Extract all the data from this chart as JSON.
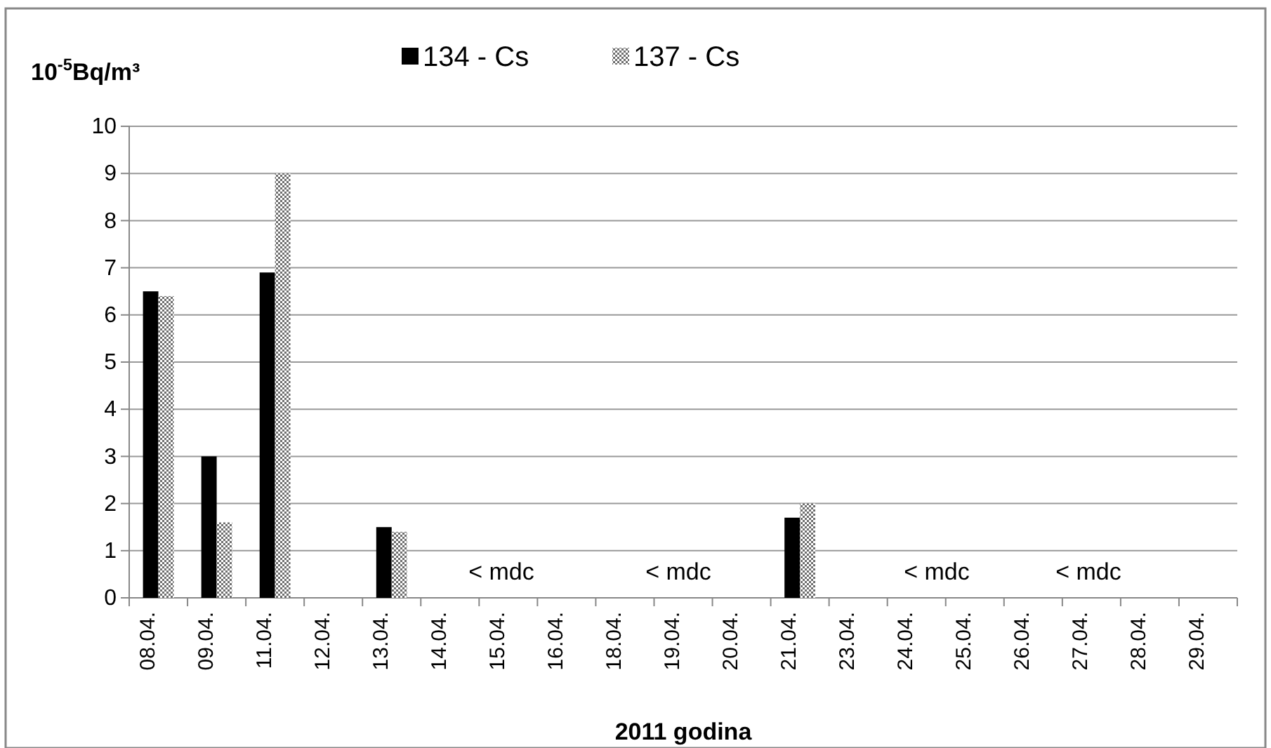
{
  "chart_data": {
    "type": "bar",
    "ylabel": "10$^{-5}$Bq/m³",
    "xlabel": "2011 godina",
    "categories": [
      "08.04.",
      "09.04.",
      "11.04.",
      "12.04.",
      "13.04.",
      "14.04.",
      "15.04.",
      "16.04.",
      "18.04.",
      "19.04.",
      "20.04.",
      "21.04.",
      "23.04.",
      "24.04.",
      "25.04.",
      "26.04.",
      "27.04.",
      "28.04.",
      "29.04."
    ],
    "series": [
      {
        "name": "134 - Cs",
        "color": "#000000",
        "values": [
          6.5,
          3.0,
          6.9,
          null,
          1.5,
          null,
          null,
          null,
          null,
          null,
          null,
          1.7,
          null,
          null,
          null,
          null,
          null,
          null,
          null
        ]
      },
      {
        "name": "137 - Cs",
        "color": "#6e6e6e",
        "values": [
          6.4,
          1.6,
          9.0,
          null,
          1.4,
          null,
          null,
          null,
          null,
          null,
          null,
          2.0,
          null,
          null,
          null,
          null,
          null,
          null,
          null
        ]
      }
    ],
    "annotations": [
      "< mdc",
      "< mdc",
      "< mdc",
      "< mdc"
    ],
    "ylim": [
      0,
      10
    ],
    "yticks": [
      0,
      1,
      2,
      3,
      4,
      5,
      6,
      7,
      8,
      9,
      10
    ],
    "grid": "y",
    "legend": "top"
  }
}
